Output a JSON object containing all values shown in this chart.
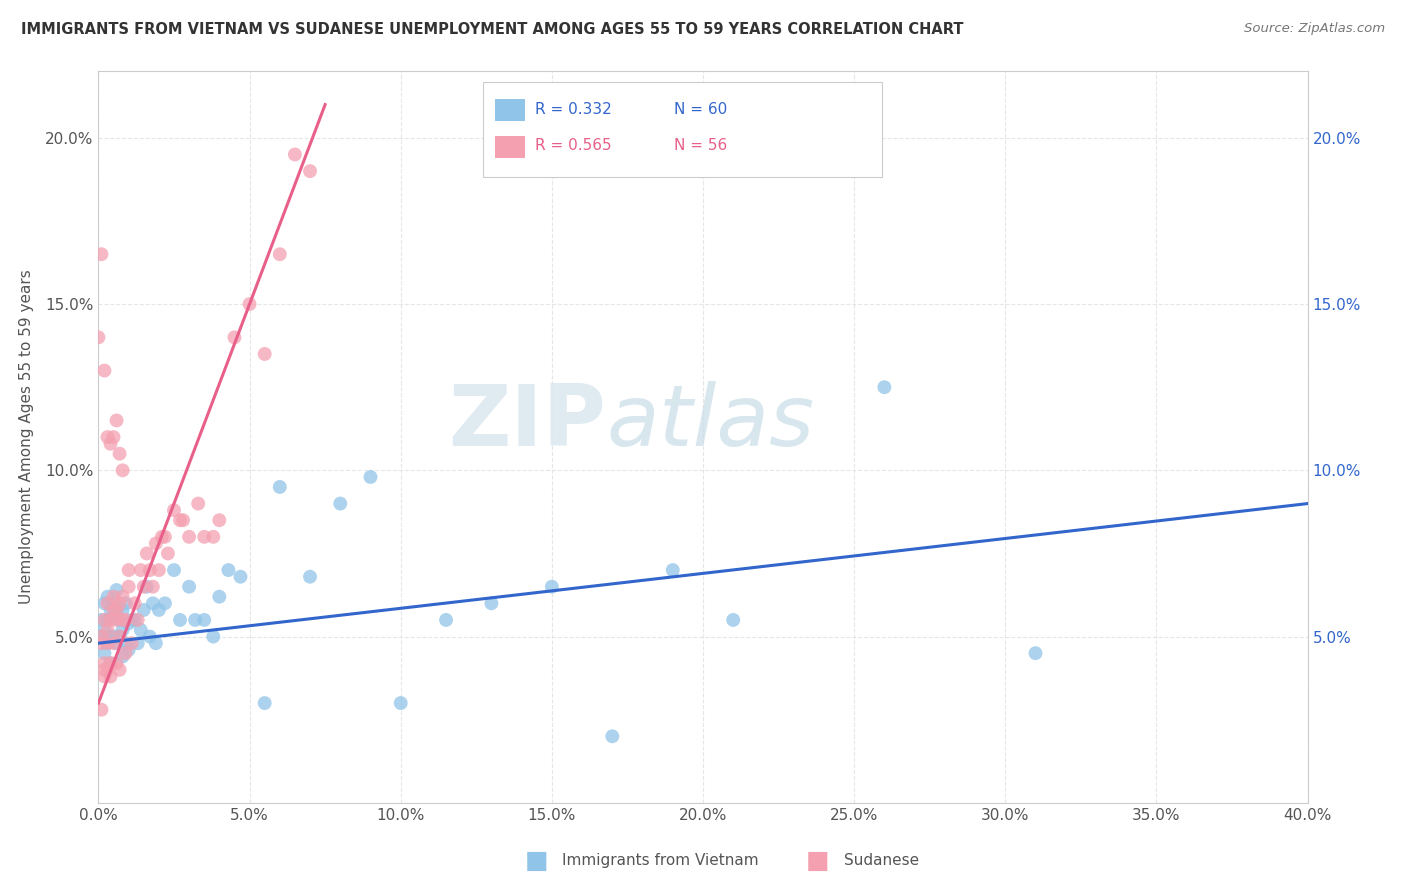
{
  "title": "IMMIGRANTS FROM VIETNAM VS SUDANESE UNEMPLOYMENT AMONG AGES 55 TO 59 YEARS CORRELATION CHART",
  "source": "Source: ZipAtlas.com",
  "ylabel": "Unemployment Among Ages 55 to 59 years",
  "xlim": [
    0.0,
    0.4
  ],
  "ylim": [
    0.0,
    0.22
  ],
  "xticks": [
    0.0,
    0.05,
    0.1,
    0.15,
    0.2,
    0.25,
    0.3,
    0.35,
    0.4
  ],
  "yticks": [
    0.0,
    0.05,
    0.1,
    0.15,
    0.2
  ],
  "background_color": "#ffffff",
  "grid_color": "#e0e0e0",
  "vietnam_color": "#90c4e8",
  "sudanese_color": "#f4a0b0",
  "vietnam_line_color": "#3366cc",
  "sudanese_line_color": "#e8608a",
  "legend_vietnam_label": "Immigrants from Vietnam",
  "legend_sudanese_label": "Sudanese",
  "vietnam_R": 0.332,
  "vietnam_N": 60,
  "sudanese_R": 0.565,
  "sudanese_N": 56,
  "watermark_zip": "ZIP",
  "watermark_atlas": "atlas",
  "vietnam_x": [
    0.001,
    0.001,
    0.002,
    0.002,
    0.002,
    0.003,
    0.003,
    0.003,
    0.004,
    0.004,
    0.004,
    0.005,
    0.005,
    0.005,
    0.006,
    0.006,
    0.006,
    0.007,
    0.007,
    0.008,
    0.008,
    0.008,
    0.009,
    0.009,
    0.01,
    0.01,
    0.011,
    0.012,
    0.013,
    0.014,
    0.015,
    0.016,
    0.017,
    0.018,
    0.019,
    0.02,
    0.022,
    0.025,
    0.027,
    0.03,
    0.032,
    0.035,
    0.038,
    0.04,
    0.043,
    0.047,
    0.055,
    0.06,
    0.07,
    0.08,
    0.09,
    0.1,
    0.115,
    0.13,
    0.15,
    0.17,
    0.19,
    0.21,
    0.26,
    0.31
  ],
  "vietnam_y": [
    0.055,
    0.05,
    0.06,
    0.045,
    0.052,
    0.055,
    0.048,
    0.062,
    0.05,
    0.058,
    0.042,
    0.05,
    0.056,
    0.06,
    0.048,
    0.058,
    0.064,
    0.05,
    0.055,
    0.052,
    0.058,
    0.044,
    0.048,
    0.06,
    0.054,
    0.046,
    0.055,
    0.055,
    0.048,
    0.052,
    0.058,
    0.065,
    0.05,
    0.06,
    0.048,
    0.058,
    0.06,
    0.07,
    0.055,
    0.065,
    0.055,
    0.055,
    0.05,
    0.062,
    0.07,
    0.068,
    0.03,
    0.095,
    0.068,
    0.09,
    0.098,
    0.03,
    0.055,
    0.06,
    0.065,
    0.02,
    0.07,
    0.055,
    0.125,
    0.045
  ],
  "sudanese_x": [
    0.001,
    0.001,
    0.001,
    0.002,
    0.002,
    0.002,
    0.002,
    0.003,
    0.003,
    0.003,
    0.003,
    0.004,
    0.004,
    0.004,
    0.005,
    0.005,
    0.005,
    0.006,
    0.006,
    0.006,
    0.007,
    0.007,
    0.007,
    0.008,
    0.008,
    0.009,
    0.009,
    0.01,
    0.01,
    0.011,
    0.012,
    0.013,
    0.014,
    0.015,
    0.016,
    0.017,
    0.018,
    0.019,
    0.02,
    0.021,
    0.022,
    0.023,
    0.025,
    0.027,
    0.028,
    0.03,
    0.033,
    0.035,
    0.038,
    0.04,
    0.045,
    0.05,
    0.055,
    0.06,
    0.065,
    0.07
  ],
  "sudanese_y": [
    0.048,
    0.05,
    0.028,
    0.055,
    0.04,
    0.038,
    0.042,
    0.06,
    0.052,
    0.04,
    0.048,
    0.055,
    0.042,
    0.038,
    0.058,
    0.048,
    0.062,
    0.055,
    0.042,
    0.058,
    0.06,
    0.05,
    0.04,
    0.062,
    0.055,
    0.055,
    0.045,
    0.065,
    0.07,
    0.048,
    0.06,
    0.055,
    0.07,
    0.065,
    0.075,
    0.07,
    0.065,
    0.078,
    0.07,
    0.08,
    0.08,
    0.075,
    0.088,
    0.085,
    0.085,
    0.08,
    0.09,
    0.08,
    0.08,
    0.085,
    0.14,
    0.15,
    0.135,
    0.165,
    0.195,
    0.19
  ],
  "sudanese_outliers_x": [
    0.0,
    0.001,
    0.002,
    0.003,
    0.004,
    0.005,
    0.006,
    0.007,
    0.008
  ],
  "sudanese_outliers_y": [
    0.14,
    0.165,
    0.13,
    0.11,
    0.108,
    0.11,
    0.115,
    0.105,
    0.1
  ],
  "vietnam_line_x0": 0.0,
  "vietnam_line_x1": 0.4,
  "vietnam_line_y0": 0.048,
  "vietnam_line_y1": 0.09,
  "sudanese_line_x0": 0.0,
  "sudanese_line_x1": 0.075,
  "sudanese_line_y0": 0.03,
  "sudanese_line_y1": 0.21
}
